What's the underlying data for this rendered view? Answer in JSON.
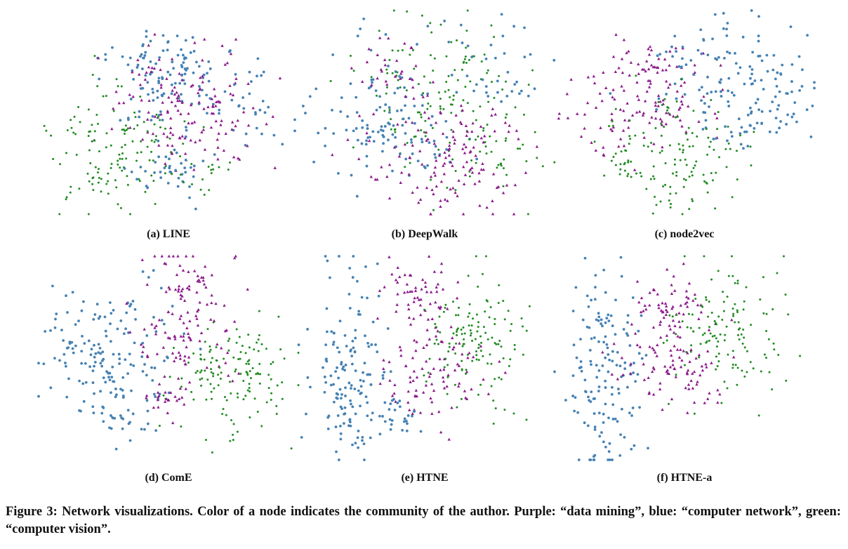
{
  "chart_data": [
    {
      "type": "scatter",
      "label": "(a) LINE",
      "layout": "line",
      "seed": 11
    },
    {
      "type": "scatter",
      "label": "(b) DeepWalk",
      "layout": "deepwalk",
      "seed": 23
    },
    {
      "type": "scatter",
      "label": "(c) node2vec",
      "layout": "node2vec",
      "seed": 37
    },
    {
      "type": "scatter",
      "label": "(d) ComE",
      "layout": "come",
      "seed": 41
    },
    {
      "type": "scatter",
      "label": "(e) HTNE",
      "layout": "htne",
      "seed": 53
    },
    {
      "type": "scatter",
      "label": "(f) HTNE-a",
      "layout": "htnea",
      "seed": 67
    }
  ],
  "legend": {
    "communities": [
      {
        "name": "data mining",
        "color": "#8b1a8b",
        "marker": "triangle"
      },
      {
        "name": "computer network",
        "color": "#4682b4",
        "marker": "circle"
      },
      {
        "name": "computer vision",
        "color": "#228b22",
        "marker": "circle"
      }
    ]
  },
  "caption": "Figure 3: Network visualizations. Color of a node indicates the community of the author. Purple: “data mining”, blue: “computer network”, green: “computer vision”."
}
